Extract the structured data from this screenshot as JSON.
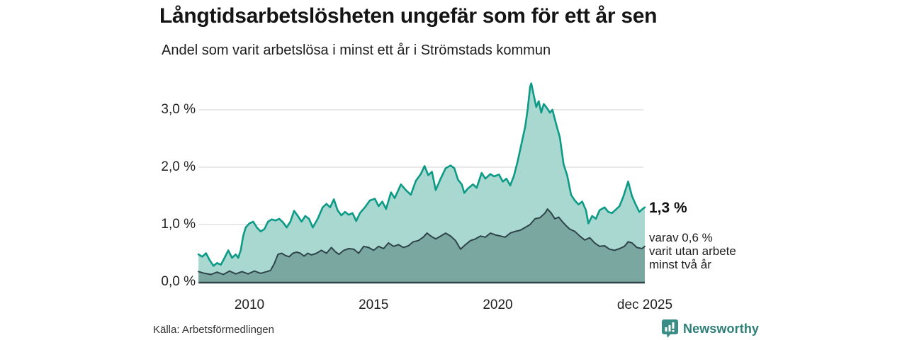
{
  "header": {
    "title": "Långtidsarbetslösheten ungefär som för ett år sen",
    "subtitle": "Andel som varit arbetslösa i minst ett år i Strömstads kommun"
  },
  "chart_data": {
    "type": "area",
    "unit": "%",
    "xlim": [
      2007.95,
      2025.92
    ],
    "ylim": [
      0,
      3.6
    ],
    "grid": "horizontal",
    "grid_color": "#dcdcdc",
    "axis_color": "#2e444a",
    "y_ticks": [
      {
        "label": "0,0 %",
        "value": 0
      },
      {
        "label": "1,0 %",
        "value": 1
      },
      {
        "label": "2,0 %",
        "value": 2
      },
      {
        "label": "3,0 %",
        "value": 3
      }
    ],
    "x_ticks": [
      {
        "label": "2010",
        "year": 2010
      },
      {
        "label": "2015",
        "year": 2015
      },
      {
        "label": "2020",
        "year": 2020
      },
      {
        "label": "dec 2025",
        "year": 2025.92
      }
    ],
    "series": [
      {
        "name": "Arbetslösa minst ett år",
        "color": "#0d9a87",
        "fill": "#a8d8d0",
        "line_width": 2.6,
        "last_value_label": "1,3 %",
        "points": [
          [
            2007.95,
            0.48
          ],
          [
            2008.1,
            0.44
          ],
          [
            2008.25,
            0.5
          ],
          [
            2008.4,
            0.38
          ],
          [
            2008.55,
            0.28
          ],
          [
            2008.7,
            0.33
          ],
          [
            2008.85,
            0.3
          ],
          [
            2009.0,
            0.42
          ],
          [
            2009.15,
            0.55
          ],
          [
            2009.3,
            0.42
          ],
          [
            2009.45,
            0.48
          ],
          [
            2009.55,
            0.42
          ],
          [
            2009.65,
            0.55
          ],
          [
            2009.75,
            0.8
          ],
          [
            2009.85,
            0.95
          ],
          [
            2010.0,
            1.02
          ],
          [
            2010.15,
            1.05
          ],
          [
            2010.3,
            0.95
          ],
          [
            2010.45,
            0.88
          ],
          [
            2010.6,
            0.92
          ],
          [
            2010.75,
            1.05
          ],
          [
            2010.9,
            1.09
          ],
          [
            2011.05,
            1.07
          ],
          [
            2011.2,
            1.1
          ],
          [
            2011.35,
            1.04
          ],
          [
            2011.5,
            0.95
          ],
          [
            2011.65,
            1.05
          ],
          [
            2011.8,
            1.24
          ],
          [
            2011.95,
            1.15
          ],
          [
            2012.1,
            1.05
          ],
          [
            2012.25,
            1.15
          ],
          [
            2012.4,
            1.1
          ],
          [
            2012.55,
            0.95
          ],
          [
            2012.75,
            1.1
          ],
          [
            2012.95,
            1.3
          ],
          [
            2013.1,
            1.36
          ],
          [
            2013.25,
            1.3
          ],
          [
            2013.4,
            1.44
          ],
          [
            2013.55,
            1.25
          ],
          [
            2013.7,
            1.16
          ],
          [
            2013.85,
            1.22
          ],
          [
            2014.0,
            1.17
          ],
          [
            2014.15,
            1.2
          ],
          [
            2014.3,
            1.06
          ],
          [
            2014.45,
            1.2
          ],
          [
            2014.65,
            1.3
          ],
          [
            2014.85,
            1.42
          ],
          [
            2015.05,
            1.45
          ],
          [
            2015.2,
            1.32
          ],
          [
            2015.35,
            1.4
          ],
          [
            2015.5,
            1.27
          ],
          [
            2015.7,
            1.56
          ],
          [
            2015.85,
            1.46
          ],
          [
            2016.1,
            1.7
          ],
          [
            2016.3,
            1.6
          ],
          [
            2016.5,
            1.52
          ],
          [
            2016.7,
            1.76
          ],
          [
            2016.9,
            1.88
          ],
          [
            2017.05,
            2.02
          ],
          [
            2017.2,
            1.86
          ],
          [
            2017.35,
            1.92
          ],
          [
            2017.5,
            1.6
          ],
          [
            2017.7,
            1.8
          ],
          [
            2017.9,
            1.98
          ],
          [
            2018.1,
            2.03
          ],
          [
            2018.25,
            1.98
          ],
          [
            2018.4,
            1.78
          ],
          [
            2018.55,
            1.7
          ],
          [
            2018.65,
            1.55
          ],
          [
            2018.8,
            1.63
          ],
          [
            2019.0,
            1.7
          ],
          [
            2019.15,
            1.64
          ],
          [
            2019.35,
            1.9
          ],
          [
            2019.5,
            1.8
          ],
          [
            2019.7,
            1.88
          ],
          [
            2019.85,
            1.84
          ],
          [
            2020.05,
            1.87
          ],
          [
            2020.2,
            1.75
          ],
          [
            2020.35,
            1.8
          ],
          [
            2020.5,
            1.68
          ],
          [
            2020.65,
            1.85
          ],
          [
            2020.8,
            2.1
          ],
          [
            2020.95,
            2.4
          ],
          [
            2021.1,
            2.7
          ],
          [
            2021.2,
            3.0
          ],
          [
            2021.3,
            3.4
          ],
          [
            2021.35,
            3.46
          ],
          [
            2021.45,
            3.25
          ],
          [
            2021.55,
            3.05
          ],
          [
            2021.65,
            3.15
          ],
          [
            2021.75,
            2.95
          ],
          [
            2021.85,
            3.1
          ],
          [
            2021.95,
            3.05
          ],
          [
            2022.1,
            2.95
          ],
          [
            2022.2,
            3.0
          ],
          [
            2022.35,
            2.75
          ],
          [
            2022.5,
            2.52
          ],
          [
            2022.65,
            2.05
          ],
          [
            2022.8,
            1.85
          ],
          [
            2022.95,
            1.52
          ],
          [
            2023.1,
            1.42
          ],
          [
            2023.25,
            1.35
          ],
          [
            2023.4,
            1.4
          ],
          [
            2023.55,
            1.25
          ],
          [
            2023.65,
            1.02
          ],
          [
            2023.8,
            1.15
          ],
          [
            2023.95,
            1.1
          ],
          [
            2024.1,
            1.25
          ],
          [
            2024.3,
            1.3
          ],
          [
            2024.45,
            1.22
          ],
          [
            2024.6,
            1.2
          ],
          [
            2024.75,
            1.26
          ],
          [
            2024.9,
            1.32
          ],
          [
            2025.05,
            1.48
          ],
          [
            2025.25,
            1.75
          ],
          [
            2025.4,
            1.5
          ],
          [
            2025.55,
            1.35
          ],
          [
            2025.7,
            1.22
          ],
          [
            2025.8,
            1.26
          ],
          [
            2025.92,
            1.3
          ]
        ]
      },
      {
        "name": "Utan arbete minst två år",
        "color": "#2e444a",
        "fill": "#7aa8a0",
        "line_width": 2,
        "last_value_label": "0,6 %",
        "points": [
          [
            2007.95,
            0.18
          ],
          [
            2008.2,
            0.15
          ],
          [
            2008.45,
            0.13
          ],
          [
            2008.7,
            0.17
          ],
          [
            2008.95,
            0.13
          ],
          [
            2009.2,
            0.19
          ],
          [
            2009.45,
            0.14
          ],
          [
            2009.7,
            0.18
          ],
          [
            2009.95,
            0.14
          ],
          [
            2010.2,
            0.19
          ],
          [
            2010.45,
            0.15
          ],
          [
            2010.7,
            0.18
          ],
          [
            2010.85,
            0.2
          ],
          [
            2011.0,
            0.32
          ],
          [
            2011.15,
            0.48
          ],
          [
            2011.3,
            0.5
          ],
          [
            2011.45,
            0.46
          ],
          [
            2011.6,
            0.44
          ],
          [
            2011.75,
            0.5
          ],
          [
            2011.9,
            0.52
          ],
          [
            2012.05,
            0.5
          ],
          [
            2012.2,
            0.45
          ],
          [
            2012.35,
            0.5
          ],
          [
            2012.5,
            0.47
          ],
          [
            2012.7,
            0.5
          ],
          [
            2012.9,
            0.55
          ],
          [
            2013.1,
            0.5
          ],
          [
            2013.3,
            0.6
          ],
          [
            2013.45,
            0.53
          ],
          [
            2013.6,
            0.48
          ],
          [
            2013.8,
            0.55
          ],
          [
            2014.0,
            0.58
          ],
          [
            2014.2,
            0.57
          ],
          [
            2014.4,
            0.5
          ],
          [
            2014.6,
            0.62
          ],
          [
            2014.8,
            0.6
          ],
          [
            2015.0,
            0.55
          ],
          [
            2015.2,
            0.62
          ],
          [
            2015.4,
            0.58
          ],
          [
            2015.6,
            0.68
          ],
          [
            2015.8,
            0.62
          ],
          [
            2016.0,
            0.65
          ],
          [
            2016.2,
            0.6
          ],
          [
            2016.4,
            0.63
          ],
          [
            2016.6,
            0.7
          ],
          [
            2016.8,
            0.72
          ],
          [
            2017.0,
            0.78
          ],
          [
            2017.15,
            0.85
          ],
          [
            2017.3,
            0.8
          ],
          [
            2017.5,
            0.75
          ],
          [
            2017.7,
            0.8
          ],
          [
            2017.9,
            0.85
          ],
          [
            2018.1,
            0.8
          ],
          [
            2018.3,
            0.72
          ],
          [
            2018.5,
            0.57
          ],
          [
            2018.7,
            0.65
          ],
          [
            2018.9,
            0.72
          ],
          [
            2019.1,
            0.75
          ],
          [
            2019.3,
            0.8
          ],
          [
            2019.5,
            0.78
          ],
          [
            2019.7,
            0.85
          ],
          [
            2019.9,
            0.82
          ],
          [
            2020.1,
            0.8
          ],
          [
            2020.3,
            0.78
          ],
          [
            2020.5,
            0.85
          ],
          [
            2020.7,
            0.88
          ],
          [
            2020.9,
            0.9
          ],
          [
            2021.1,
            0.95
          ],
          [
            2021.3,
            1.0
          ],
          [
            2021.5,
            1.1
          ],
          [
            2021.7,
            1.12
          ],
          [
            2021.9,
            1.2
          ],
          [
            2022.0,
            1.27
          ],
          [
            2022.15,
            1.2
          ],
          [
            2022.3,
            1.1
          ],
          [
            2022.45,
            1.13
          ],
          [
            2022.6,
            1.05
          ],
          [
            2022.75,
            0.98
          ],
          [
            2022.9,
            0.92
          ],
          [
            2023.1,
            0.88
          ],
          [
            2023.3,
            0.8
          ],
          [
            2023.5,
            0.73
          ],
          [
            2023.7,
            0.77
          ],
          [
            2023.9,
            0.68
          ],
          [
            2024.1,
            0.62
          ],
          [
            2024.3,
            0.63
          ],
          [
            2024.5,
            0.57
          ],
          [
            2024.7,
            0.55
          ],
          [
            2024.9,
            0.58
          ],
          [
            2025.1,
            0.62
          ],
          [
            2025.25,
            0.7
          ],
          [
            2025.4,
            0.68
          ],
          [
            2025.6,
            0.6
          ],
          [
            2025.8,
            0.58
          ],
          [
            2025.92,
            0.62
          ]
        ]
      }
    ],
    "annotations": {
      "value_label": "1,3 %",
      "detail_lines": [
        "varav 0,6 %",
        "varit utan arbete",
        "minst två år"
      ]
    }
  },
  "footer": {
    "source": "Källa: Arbetsförmedlingen",
    "brand": "Newsworthy",
    "brand_color": "#2e7e78",
    "brand_icon": "bar-chart-speech-bubble",
    "brand_icon_color": "#3b8c85"
  }
}
